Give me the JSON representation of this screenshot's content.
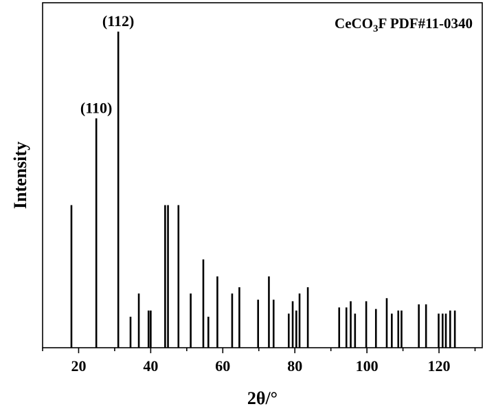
{
  "chart_data": {
    "type": "bar",
    "style": "stick pattern",
    "xlabel": "2θ/°",
    "ylabel": "Intensity",
    "xlim": [
      10,
      132
    ],
    "ylim": [
      0,
      102
    ],
    "xticks": [
      20,
      40,
      60,
      80,
      100,
      120
    ],
    "legend_text": {
      "main": "CeCO",
      "sub": "3",
      "tail": "F PDF#11-0340"
    },
    "legend_position": "top-right",
    "peak_color": "#000000",
    "peaks": [
      {
        "x": 18.0,
        "y": 46
      },
      {
        "x": 24.9,
        "y": 74,
        "label": "(110)"
      },
      {
        "x": 31.0,
        "y": 102,
        "label": "(112)"
      },
      {
        "x": 34.4,
        "y": 10
      },
      {
        "x": 36.7,
        "y": 17.5
      },
      {
        "x": 39.4,
        "y": 12
      },
      {
        "x": 40.0,
        "y": 12
      },
      {
        "x": 44.0,
        "y": 46
      },
      {
        "x": 44.8,
        "y": 46
      },
      {
        "x": 47.7,
        "y": 46
      },
      {
        "x": 51.1,
        "y": 17.5
      },
      {
        "x": 54.6,
        "y": 28.5
      },
      {
        "x": 56.0,
        "y": 10
      },
      {
        "x": 58.5,
        "y": 23
      },
      {
        "x": 62.6,
        "y": 17.5
      },
      {
        "x": 64.6,
        "y": 19.5
      },
      {
        "x": 69.8,
        "y": 15.5
      },
      {
        "x": 72.8,
        "y": 23
      },
      {
        "x": 74.1,
        "y": 15.5
      },
      {
        "x": 78.3,
        "y": 11
      },
      {
        "x": 79.4,
        "y": 15
      },
      {
        "x": 80.4,
        "y": 12
      },
      {
        "x": 81.3,
        "y": 17.5
      },
      {
        "x": 83.6,
        "y": 19.5
      },
      {
        "x": 92.3,
        "y": 13
      },
      {
        "x": 94.3,
        "y": 13
      },
      {
        "x": 95.5,
        "y": 15
      },
      {
        "x": 96.7,
        "y": 11
      },
      {
        "x": 99.8,
        "y": 15
      },
      {
        "x": 102.5,
        "y": 12.5
      },
      {
        "x": 105.5,
        "y": 16
      },
      {
        "x": 106.9,
        "y": 11
      },
      {
        "x": 108.7,
        "y": 12
      },
      {
        "x": 109.6,
        "y": 12
      },
      {
        "x": 114.4,
        "y": 14
      },
      {
        "x": 116.4,
        "y": 14
      },
      {
        "x": 119.9,
        "y": 11
      },
      {
        "x": 121.0,
        "y": 11
      },
      {
        "x": 121.9,
        "y": 11
      },
      {
        "x": 123.1,
        "y": 12
      },
      {
        "x": 124.4,
        "y": 12
      }
    ]
  }
}
